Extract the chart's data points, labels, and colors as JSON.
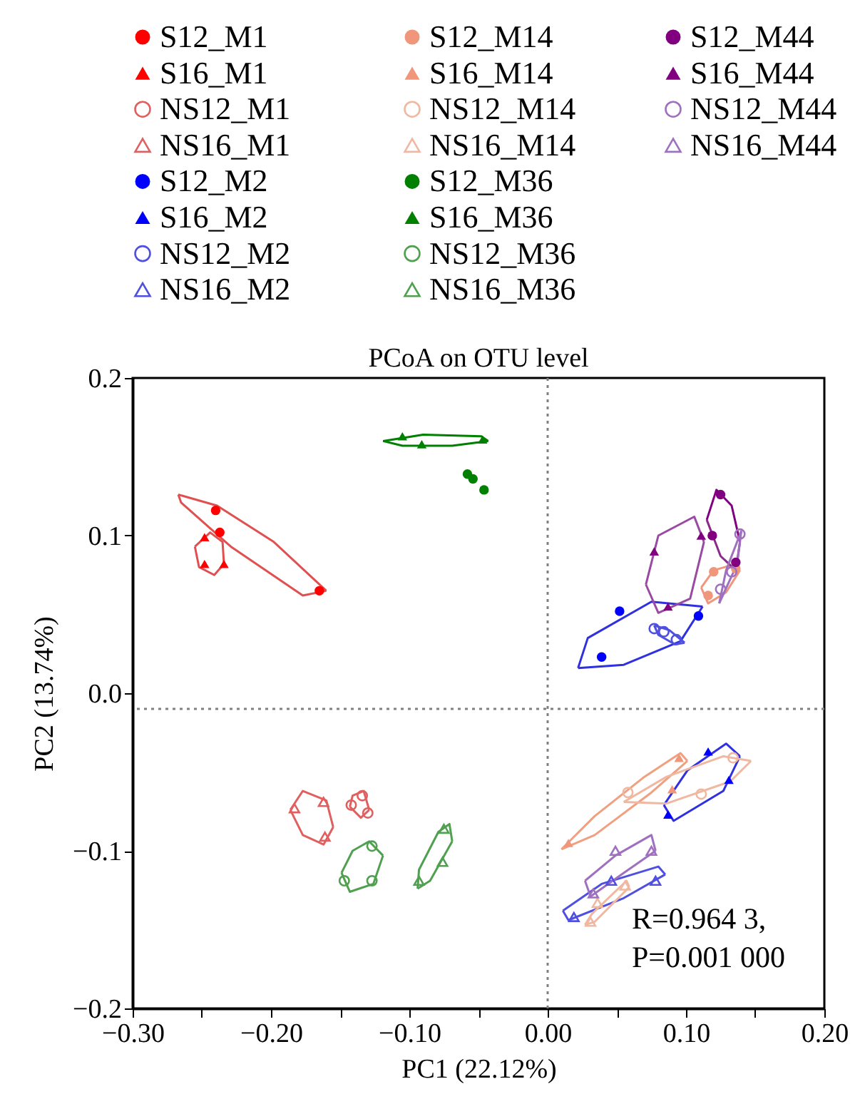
{
  "chart_data": {
    "type": "scatter",
    "title": "PCoA on OTU level",
    "xlabel": "PC1 (22.12%)",
    "ylabel": "PC2 (13.74%)",
    "xlim": [
      -0.3,
      0.2
    ],
    "ylim": [
      -0.2,
      0.2
    ],
    "xticks": [
      {
        "value": -0.3,
        "label": "−0.30"
      },
      {
        "value": -0.25,
        "label": null
      },
      {
        "value": -0.2,
        "label": "−0.20"
      },
      {
        "value": -0.15,
        "label": null
      },
      {
        "value": -0.1,
        "label": "−0.10"
      },
      {
        "value": -0.05,
        "label": null
      },
      {
        "value": 0,
        "label": "0.00"
      },
      {
        "value": 0.05,
        "label": null
      },
      {
        "value": 0.1,
        "label": "0.10"
      },
      {
        "value": 0.15,
        "label": null
      },
      {
        "value": 0.2,
        "label": "0.20"
      }
    ],
    "yticks": [
      0.2,
      0.1,
      {
        "value": 0,
        "label": "0.0"
      },
      {
        "value": -0.1,
        "label": "−0.1"
      },
      {
        "value": -0.2,
        "label": "−0.2"
      }
    ],
    "grid": false,
    "legend": "top",
    "ref_lines": [
      {
        "axis": "x",
        "value": 0,
        "color": "#808080",
        "line_style": "dotted"
      },
      {
        "axis": "y",
        "value": -0.01,
        "color": "#808080",
        "line_style": "dotted"
      }
    ],
    "annotations": [
      "R=0.964 3,",
      "P=0.001 000"
    ],
    "series": [
      {
        "name": "S12_M1",
        "color": "#ff0000",
        "marker": "circle",
        "x": [
          -0.24,
          -0.237,
          -0.165
        ],
        "values": [
          0.116,
          0.102,
          0.065
        ]
      },
      {
        "name": "S16_M1",
        "color": "#ff0000",
        "marker": "triangle",
        "x": [
          -0.248,
          -0.248,
          -0.234
        ],
        "values": [
          0.099,
          0.082,
          0.082
        ]
      },
      {
        "name": "NS12_M1",
        "color": "#e06060",
        "marker": "circle-open",
        "x": [
          -0.142,
          -0.134,
          -0.13
        ],
        "values": [
          -0.071,
          -0.065,
          -0.076
        ]
      },
      {
        "name": "NS16_M1",
        "color": "#e06060",
        "marker": "triangle-open",
        "x": [
          -0.183,
          -0.162,
          -0.161
        ],
        "values": [
          -0.073,
          -0.069,
          -0.091
        ]
      },
      {
        "name": "S12_M2",
        "color": "#0000ff",
        "marker": "circle",
        "x": [
          0.052,
          0.109,
          0.039
        ],
        "values": [
          0.052,
          0.049,
          0.023
        ]
      },
      {
        "name": "S16_M2",
        "color": "#0000ff",
        "marker": "triangle",
        "x": [
          0.116,
          0.131,
          0.087
        ],
        "values": [
          -0.037,
          -0.055,
          -0.077
        ]
      },
      {
        "name": "NS12_M2",
        "color": "#5050e0",
        "marker": "circle-open",
        "x": [
          0.077,
          0.084,
          0.093
        ],
        "values": [
          0.041,
          0.039,
          0.034
        ]
      },
      {
        "name": "NS16_M2",
        "color": "#5050e0",
        "marker": "triangle-open",
        "x": [
          0.046,
          0.078,
          0.019
        ],
        "values": [
          -0.119,
          -0.119,
          -0.142
        ]
      },
      {
        "name": "S12_M14",
        "color": "#f0967a",
        "marker": "circle",
        "x": [
          0.12,
          0.136,
          0.116
        ],
        "values": [
          0.077,
          0.079,
          0.062
        ]
      },
      {
        "name": "S16_M14",
        "color": "#f0967a",
        "marker": "triangle",
        "x": [
          0.095,
          0.09,
          0.015
        ],
        "values": [
          -0.041,
          -0.061,
          -0.095
        ]
      },
      {
        "name": "NS12_M14",
        "color": "#f0b8a0",
        "marker": "circle-open",
        "x": [
          0.134,
          0.058,
          0.111
        ],
        "values": [
          -0.041,
          -0.063,
          -0.064
        ]
      },
      {
        "name": "NS16_M14",
        "color": "#f0b8a0",
        "marker": "triangle-open",
        "x": [
          0.056,
          0.036,
          0.031
        ],
        "values": [
          -0.122,
          -0.133,
          -0.145
        ]
      },
      {
        "name": "S12_M36",
        "color": "#008000",
        "marker": "circle",
        "x": [
          -0.058,
          -0.054,
          -0.046
        ],
        "values": [
          0.139,
          0.136,
          0.129
        ]
      },
      {
        "name": "S16_M36",
        "color": "#008000",
        "marker": "triangle",
        "x": [
          -0.105,
          -0.091,
          -0.047
        ],
        "values": [
          0.163,
          0.158,
          0.161
        ]
      },
      {
        "name": "NS12_M36",
        "color": "#50a050",
        "marker": "circle-open",
        "x": [
          -0.127,
          -0.147,
          -0.127
        ],
        "values": [
          -0.097,
          -0.119,
          -0.119
        ]
      },
      {
        "name": "NS16_M36",
        "color": "#50a050",
        "marker": "triangle-open",
        "x": [
          -0.075,
          -0.076,
          -0.093
        ],
        "values": [
          -0.086,
          -0.107,
          -0.119
        ]
      },
      {
        "name": "S12_M44",
        "color": "#800080",
        "marker": "circle",
        "x": [
          0.125,
          0.119,
          0.136
        ],
        "values": [
          0.126,
          0.1,
          0.083
        ]
      },
      {
        "name": "S16_M44",
        "color": "#800080",
        "marker": "triangle",
        "x": [
          0.077,
          0.111,
          0.087
        ],
        "values": [
          0.09,
          0.1,
          0.055
        ]
      },
      {
        "name": "NS12_M44",
        "color": "#a070c0",
        "marker": "circle-open",
        "x": [
          0.139,
          0.133,
          0.125
        ],
        "values": [
          0.101,
          0.077,
          0.066
        ]
      },
      {
        "name": "NS16_M44",
        "color": "#a070c0",
        "marker": "triangle-open",
        "x": [
          0.049,
          0.075,
          0.033
        ],
        "values": [
          -0.1,
          -0.1,
          -0.127
        ]
      },
      {
        "type": "line",
        "color": "#e05050",
        "marker": "none",
        "x": [
          -0.267,
          -0.239,
          -0.198,
          -0.16
        ],
        "values": [
          0.126,
          0.119,
          0.096,
          0.065
        ]
      },
      {
        "type": "line",
        "color": "#e05050",
        "marker": "none",
        "x": [
          -0.267,
          -0.265,
          -0.229,
          -0.177,
          -0.16
        ],
        "values": [
          0.126,
          0.121,
          0.093,
          0.062,
          0.065
        ]
      },
      {
        "type": "line",
        "color": "#e05050",
        "marker": "none",
        "x": [
          -0.255,
          -0.244,
          -0.235,
          -0.234
        ],
        "values": [
          0.093,
          0.102,
          0.096,
          0.082
        ]
      },
      {
        "type": "line",
        "color": "#e05050",
        "marker": "none",
        "x": [
          -0.255,
          -0.252,
          -0.241,
          -0.234
        ],
        "values": [
          0.093,
          0.08,
          0.075,
          0.082
        ]
      },
      {
        "type": "line",
        "color": "#e06060",
        "marker": "none",
        "x": [
          -0.143,
          -0.141,
          -0.133,
          -0.129
        ],
        "values": [
          -0.072,
          -0.065,
          -0.062,
          -0.074
        ]
      },
      {
        "type": "line",
        "color": "#e06060",
        "marker": "none",
        "x": [
          -0.143,
          -0.135,
          -0.129
        ],
        "values": [
          -0.072,
          -0.079,
          -0.074
        ]
      },
      {
        "type": "line",
        "color": "#e06060",
        "marker": "none",
        "x": [
          -0.186,
          -0.177,
          -0.16,
          -0.155
        ],
        "values": [
          -0.074,
          -0.062,
          -0.068,
          -0.085
        ]
      },
      {
        "type": "line",
        "color": "#e06060",
        "marker": "none",
        "x": [
          -0.186,
          -0.177,
          -0.162,
          -0.155
        ],
        "values": [
          -0.074,
          -0.09,
          -0.096,
          -0.085
        ]
      },
      {
        "type": "line",
        "color": "#3030e0",
        "marker": "none",
        "x": [
          0.022,
          0.029,
          0.075,
          0.112
        ],
        "values": [
          0.016,
          0.035,
          0.058,
          0.055
        ]
      },
      {
        "type": "line",
        "color": "#3030e0",
        "marker": "none",
        "x": [
          0.022,
          0.055,
          0.096,
          0.112
        ],
        "values": [
          0.016,
          0.018,
          0.033,
          0.055
        ]
      },
      {
        "type": "line",
        "color": "#3030e0",
        "marker": "none",
        "x": [
          0.084,
          0.101,
          0.129,
          0.139
        ],
        "values": [
          -0.071,
          -0.049,
          -0.032,
          -0.04
        ]
      },
      {
        "type": "line",
        "color": "#3030e0",
        "marker": "none",
        "x": [
          0.084,
          0.091,
          0.127,
          0.139
        ],
        "values": [
          -0.071,
          -0.081,
          -0.062,
          -0.04
        ]
      },
      {
        "type": "line",
        "color": "#5050e0",
        "marker": "none",
        "x": [
          0.077,
          0.088,
          0.099
        ],
        "values": [
          0.043,
          0.04,
          0.032
        ]
      },
      {
        "type": "line",
        "color": "#5050e0",
        "marker": "none",
        "x": [
          0.077,
          0.08,
          0.092,
          0.099
        ],
        "values": [
          0.043,
          0.037,
          0.031,
          0.032
        ]
      },
      {
        "type": "line",
        "color": "#5050e0",
        "marker": "none",
        "x": [
          0.011,
          0.039,
          0.08,
          0.085
        ],
        "values": [
          -0.138,
          -0.121,
          -0.11,
          -0.115
        ]
      },
      {
        "type": "line",
        "color": "#5050e0",
        "marker": "none",
        "x": [
          0.011,
          0.015,
          0.055,
          0.085
        ],
        "values": [
          -0.138,
          -0.144,
          -0.13,
          -0.115
        ]
      },
      {
        "type": "line",
        "color": "#f0967a",
        "marker": "none",
        "x": [
          0.111,
          0.12,
          0.132,
          0.139
        ],
        "values": [
          0.067,
          0.078,
          0.081,
          0.078
        ]
      },
      {
        "type": "line",
        "color": "#f0967a",
        "marker": "none",
        "x": [
          0.111,
          0.116,
          0.129,
          0.139
        ],
        "values": [
          0.067,
          0.057,
          0.064,
          0.078
        ]
      },
      {
        "type": "line",
        "color": "#f0a080",
        "marker": "none",
        "x": [
          0.01,
          0.034,
          0.07,
          0.096,
          0.101
        ],
        "values": [
          -0.099,
          -0.078,
          -0.053,
          -0.038,
          -0.043
        ]
      },
      {
        "type": "line",
        "color": "#f0a080",
        "marker": "none",
        "x": [
          0.01,
          0.034,
          0.075,
          0.101
        ],
        "values": [
          -0.099,
          -0.09,
          -0.063,
          -0.043
        ]
      },
      {
        "type": "line",
        "color": "#f0b8a0",
        "marker": "none",
        "x": [
          0.055,
          0.086,
          0.127,
          0.147
        ],
        "values": [
          -0.069,
          -0.053,
          -0.04,
          -0.043
        ]
      },
      {
        "type": "line",
        "color": "#f0b8a0",
        "marker": "none",
        "x": [
          0.055,
          0.086,
          0.132,
          0.147
        ],
        "values": [
          -0.069,
          -0.07,
          -0.056,
          -0.043
        ]
      },
      {
        "type": "line",
        "color": "#f0b8a0",
        "marker": "none",
        "x": [
          0.027,
          0.032,
          0.057,
          0.059
        ],
        "values": [
          -0.147,
          -0.14,
          -0.119,
          -0.123
        ]
      },
      {
        "type": "line",
        "color": "#f0b8a0",
        "marker": "none",
        "x": [
          0.027,
          0.034,
          0.059
        ],
        "values": [
          -0.147,
          -0.145,
          -0.123
        ]
      },
      {
        "type": "line",
        "color": "#008000",
        "marker": "none",
        "x": [
          -0.119,
          -0.09,
          -0.048,
          -0.043
        ],
        "values": [
          0.16,
          0.164,
          0.163,
          0.16
        ]
      },
      {
        "type": "line",
        "color": "#008000",
        "marker": "none",
        "x": [
          -0.119,
          -0.105,
          -0.069,
          -0.043
        ],
        "values": [
          0.16,
          0.157,
          0.157,
          0.16
        ]
      },
      {
        "type": "line",
        "color": "#50a050",
        "marker": "none",
        "x": [
          -0.149,
          -0.141,
          -0.129,
          -0.119
        ],
        "values": [
          -0.114,
          -0.1,
          -0.094,
          -0.103
        ]
      },
      {
        "type": "line",
        "color": "#50a050",
        "marker": "none",
        "x": [
          -0.149,
          -0.143,
          -0.126,
          -0.119
        ],
        "values": [
          -0.114,
          -0.126,
          -0.121,
          -0.103
        ]
      },
      {
        "type": "line",
        "color": "#50a050",
        "marker": "none",
        "x": [
          -0.094,
          -0.093,
          -0.079,
          -0.071,
          -0.069
        ],
        "values": [
          -0.124,
          -0.112,
          -0.088,
          -0.083,
          -0.094
        ]
      },
      {
        "type": "line",
        "color": "#50a050",
        "marker": "none",
        "x": [
          -0.094,
          -0.085,
          -0.069
        ],
        "values": [
          -0.124,
          -0.119,
          -0.094
        ]
      },
      {
        "type": "line",
        "color": "#800080",
        "marker": "none",
        "x": [
          0.115,
          0.122,
          0.133,
          0.139
        ],
        "values": [
          0.11,
          0.129,
          0.119,
          0.096
        ]
      },
      {
        "type": "line",
        "color": "#8c2a8c",
        "marker": "none",
        "x": [
          0.115,
          0.125,
          0.136,
          0.139
        ],
        "values": [
          0.11,
          0.087,
          0.078,
          0.096
        ]
      },
      {
        "type": "line",
        "color": "#9a4aa2",
        "marker": "none",
        "x": [
          0.071,
          0.08,
          0.106,
          0.113
        ],
        "values": [
          0.069,
          0.1,
          0.112,
          0.096
        ]
      },
      {
        "type": "line",
        "color": "#9a4aa2",
        "marker": "none",
        "x": [
          0.071,
          0.08,
          0.103,
          0.113
        ],
        "values": [
          0.069,
          0.051,
          0.06,
          0.096
        ]
      },
      {
        "type": "line",
        "color": "#a070c0",
        "marker": "none",
        "x": [
          0.124,
          0.129,
          0.14
        ],
        "values": [
          0.057,
          0.078,
          0.103
        ]
      },
      {
        "type": "line",
        "color": "#a070c0",
        "marker": "none",
        "x": [
          0.124,
          0.137,
          0.14
        ],
        "values": [
          0.057,
          0.082,
          0.103
        ]
      },
      {
        "type": "line",
        "color": "#a070c0",
        "marker": "none",
        "x": [
          0.027,
          0.049,
          0.075,
          0.078
        ],
        "values": [
          -0.119,
          -0.103,
          -0.09,
          -0.1
        ]
      },
      {
        "type": "line",
        "color": "#a070c0",
        "marker": "none",
        "x": [
          0.027,
          0.031,
          0.055,
          0.078
        ],
        "values": [
          -0.119,
          -0.129,
          -0.114,
          -0.1
        ]
      }
    ]
  }
}
